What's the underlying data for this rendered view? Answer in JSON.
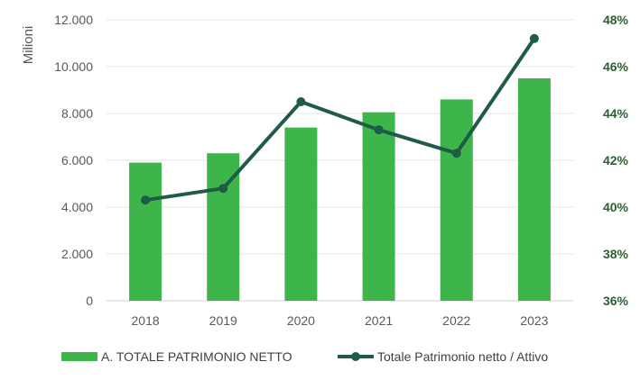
{
  "chart_data": {
    "type": "bar",
    "categories": [
      "2018",
      "2019",
      "2020",
      "2021",
      "2022",
      "2023"
    ],
    "series": [
      {
        "name": "A. TOTALE PATRIMONIO NETTO",
        "type": "bar",
        "axis": "left",
        "color": "#3db54a",
        "values": [
          5900,
          6300,
          7400,
          8050,
          8600,
          9500
        ]
      },
      {
        "name": "Totale Patrimonio netto / Attivo",
        "type": "line",
        "axis": "right",
        "color": "#1f5c47",
        "values": [
          40.3,
          40.8,
          44.5,
          43.3,
          42.3,
          47.2
        ]
      }
    ],
    "ylabel": "Milioni",
    "ylim": [
      0,
      12000
    ],
    "y_ticks": [
      "0",
      "2.000",
      "4.000",
      "6.000",
      "8.000",
      "10.000",
      "12.000"
    ],
    "y2lim": [
      36,
      48
    ],
    "y2_ticks": [
      "36%",
      "38%",
      "40%",
      "42%",
      "44%",
      "46%",
      "48%"
    ],
    "grid": true,
    "legend_position": "bottom"
  }
}
